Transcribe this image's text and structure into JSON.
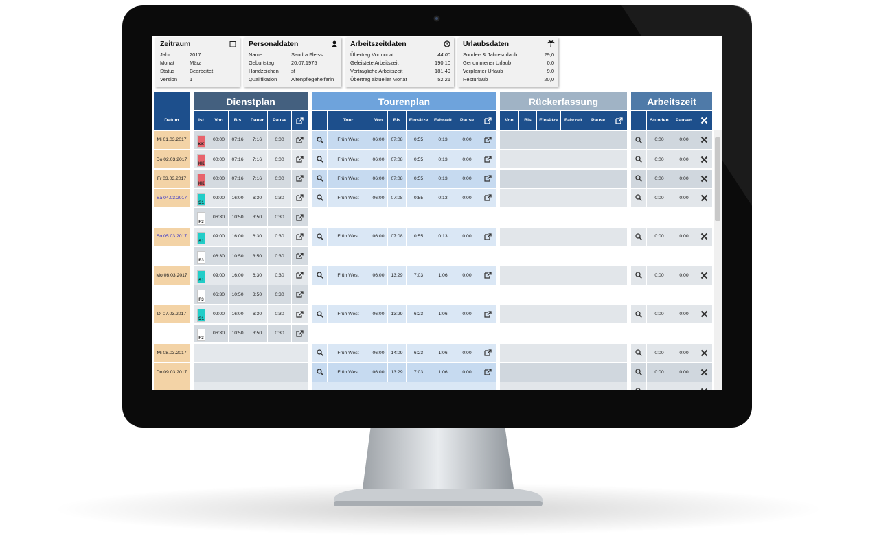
{
  "cards": [
    {
      "title": "Zeitraum",
      "rows": [
        [
          "Jahr",
          "2017"
        ],
        [
          "Monat",
          "März"
        ],
        [
          "Status",
          "Bearbeitet"
        ],
        [
          "Version",
          "1"
        ]
      ]
    },
    {
      "title": "Personaldaten",
      "rows": [
        [
          "Name",
          "Sandra Fleiss"
        ],
        [
          "Geburtstag",
          "20.07.1975"
        ],
        [
          "Handzeichen",
          "sf"
        ],
        [
          "Qualifikation",
          "Altenpflegehelferin"
        ]
      ]
    },
    {
      "title": "Arbeitszeitdaten",
      "rows": [
        [
          "Übertrag Vormonat",
          "44:00"
        ],
        [
          "Geleistete Arbeitszeit",
          "190:10"
        ],
        [
          "Vertragliche Arbeitszeit",
          "181:49"
        ],
        [
          "Übertrag aktueller Monat",
          "52:21"
        ]
      ]
    },
    {
      "title": "Urlaubsdaten",
      "rows": [
        [
          "Sonder- & Jahresurlaub",
          "29,0"
        ],
        [
          "Genommener Urlaub",
          "0,0"
        ],
        [
          "Verplanter Urlaub",
          "9,0"
        ],
        [
          "Resturlaub",
          "20,0"
        ]
      ]
    }
  ],
  "table": {
    "date_header": "Datum",
    "sections": [
      {
        "title": "Dienstplan",
        "columns": [
          "Ist",
          "Von",
          "Bis",
          "Dauer",
          "Pause"
        ]
      },
      {
        "title": "Tourenplan",
        "columns": [
          "Tour",
          "Von",
          "Bis",
          "Einsätze",
          "Fahrzeit",
          "Pause"
        ]
      },
      {
        "title": "Rückerfassung",
        "columns": [
          "Von",
          "Bis",
          "Einsätze",
          "Fahrzeit",
          "Pause"
        ]
      },
      {
        "title": "Arbeitszeit",
        "columns": [
          "Stunden",
          "Pausen"
        ]
      }
    ],
    "rows": [
      {
        "date": "Mi 01.03.2017",
        "ist_color": "#e8636c",
        "dienst": [
          "KK",
          "00:00",
          "07:16",
          "7:16",
          "0:00"
        ],
        "tour": [
          "Früh West",
          "06:00",
          "07:08",
          "0:55",
          "0:13",
          "0:00"
        ],
        "az": [
          "0:00",
          "0:00"
        ]
      },
      {
        "date": "Do 02.03.2017",
        "ist_color": "#e8636c",
        "dienst": [
          "KK",
          "00:00",
          "07:16",
          "7:16",
          "0:00"
        ],
        "tour": [
          "Früh West",
          "06:00",
          "07:08",
          "0:55",
          "0:13",
          "0:00"
        ],
        "az": [
          "0:00",
          "0:00"
        ]
      },
      {
        "date": "Fr 03.03.2017",
        "ist_color": "#e8636c",
        "dienst": [
          "KK",
          "00:00",
          "07:16",
          "7:16",
          "0:00"
        ],
        "tour": [
          "Früh West",
          "06:00",
          "07:08",
          "0:55",
          "0:13",
          "0:00"
        ],
        "az": [
          "0:00",
          "0:00"
        ]
      },
      {
        "date": "Sa 04.03.2017",
        "ist_color": "#22cdc8",
        "dienst": [
          "S1",
          "09:00",
          "16:00",
          "6:30",
          "0:30"
        ],
        "tour": [
          "Früh West",
          "06:00",
          "07:08",
          "0:55",
          "0:13",
          "0:00"
        ],
        "az": [
          "0:00",
          "0:00"
        ]
      },
      {
        "date": null,
        "ist_color": "#ffffff",
        "dienst": [
          "F3",
          "06:30",
          "10:50",
          "3:50",
          "0:30"
        ]
      },
      {
        "date": "So 05.03.2017",
        "ist_color": "#22cdc8",
        "dienst": [
          "S1",
          "09:00",
          "16:00",
          "6:30",
          "0:30"
        ],
        "tour": [
          "Früh West",
          "06:00",
          "07:08",
          "0:55",
          "0:13",
          "0:00"
        ],
        "az": [
          "0:00",
          "0:00"
        ]
      },
      {
        "date": null,
        "ist_color": "#ffffff",
        "dienst": [
          "F3",
          "06:30",
          "10:50",
          "3:50",
          "0:30"
        ]
      },
      {
        "date": "Mo 06.03.2017",
        "ist_color": "#22cdc8",
        "dienst": [
          "S1",
          "09:00",
          "16:00",
          "6:30",
          "0:30"
        ],
        "tour": [
          "Früh West",
          "06:00",
          "13:29",
          "7:03",
          "1:06",
          "0:00"
        ],
        "az": [
          "0:00",
          "0:00"
        ]
      },
      {
        "date": null,
        "ist_color": "#ffffff",
        "dienst": [
          "F3",
          "06:30",
          "10:50",
          "3:50",
          "0:30"
        ]
      },
      {
        "date": "Di 07.03.2017",
        "ist_color": "#22cdc8",
        "dienst": [
          "S1",
          "09:00",
          "16:00",
          "6:30",
          "0:30"
        ],
        "tour": [
          "Früh West",
          "06:00",
          "13:29",
          "6:23",
          "1:06",
          "0:00"
        ],
        "az": [
          "0:00",
          "0:00"
        ]
      },
      {
        "date": null,
        "ist_color": "#ffffff",
        "dienst": [
          "F3",
          "06:30",
          "10:50",
          "3:50",
          "0:30"
        ]
      },
      {
        "date": "Mi 08.03.2017",
        "tour": [
          "Früh West",
          "06:00",
          "14:09",
          "6:23",
          "1:06",
          "0:00"
        ],
        "az": [
          "0:00",
          "0:00"
        ]
      },
      {
        "date": "Do 09.03.2017",
        "tour": [
          "Früh West",
          "06:00",
          "13:29",
          "7:03",
          "1:06",
          "0:00"
        ],
        "az": [
          "0:00",
          "0:00"
        ]
      }
    ]
  }
}
